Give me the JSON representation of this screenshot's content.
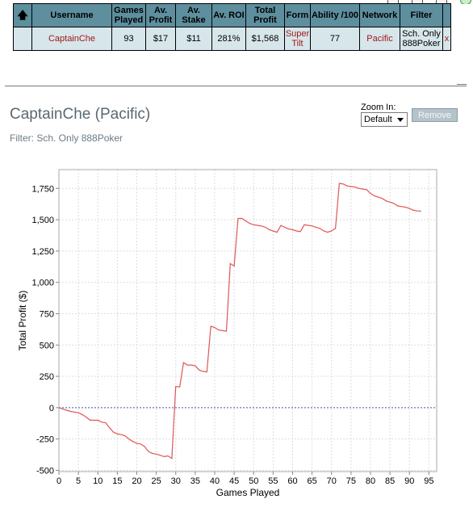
{
  "stats_table": {
    "headers": [
      "",
      "Username",
      "Games Played",
      "Av. Profit",
      "Av. Stake",
      "Av. ROI",
      "Total Profit",
      "Form",
      "Ability /100",
      "Network",
      "Filter",
      ""
    ],
    "row": {
      "username": "CaptainChe",
      "games_played": "93",
      "av_profit": "$17",
      "av_stake": "$11",
      "av_roi": "281%",
      "total_profit": "$1,568",
      "form": "Super Tilt",
      "ability": "77",
      "network": "Pacific",
      "filter": "Sch. Only 888Poker",
      "remove_x": "x"
    }
  },
  "player": {
    "title": "CaptainChe (Pacific)",
    "filter": "Filter: Sch. Only 888Poker"
  },
  "zoom": {
    "label": "Zoom In:",
    "selected": "Default"
  },
  "remove_button": "Remove",
  "colors": {
    "header_bg": "#5d8f9e",
    "row_bg": "#d7e6ea",
    "link": "#a01818",
    "line": "#e05555",
    "zero_line": "#4a5aa8"
  },
  "chart_data": {
    "type": "line",
    "xlabel": "Games Played",
    "ylabel": "Total Profit ($)",
    "xlim": [
      0,
      97
    ],
    "ylim": [
      -510,
      1900
    ],
    "x_ticks": [
      0,
      5,
      10,
      15,
      20,
      25,
      30,
      35,
      40,
      45,
      50,
      55,
      60,
      65,
      70,
      75,
      80,
      85,
      90,
      95
    ],
    "y_ticks": [
      -500,
      -250,
      0,
      250,
      500,
      750,
      1000,
      1250,
      1500,
      1750
    ],
    "y_tick_labels": [
      "-500",
      "-250",
      "0",
      "250",
      "500",
      "750",
      "1,000",
      "1,250",
      "1,500",
      "1,750"
    ],
    "grid": true,
    "reference_line": 0,
    "series": [
      {
        "x": [
          0,
          1,
          2,
          3,
          4,
          5,
          6,
          7,
          8,
          9,
          10,
          11,
          12,
          13,
          14,
          15,
          16,
          17,
          18,
          19,
          20,
          21,
          22,
          23,
          24,
          25,
          26,
          27,
          28,
          29,
          30,
          31,
          32,
          33,
          34,
          35,
          36,
          37,
          38,
          39,
          40,
          41,
          42,
          43,
          44,
          45,
          46,
          47,
          48,
          49,
          50,
          51,
          52,
          53,
          54,
          55,
          56,
          57,
          58,
          59,
          60,
          61,
          62,
          63,
          64,
          65,
          66,
          67,
          68,
          69,
          70,
          71,
          72,
          73,
          74,
          75,
          76,
          77,
          78,
          79,
          80,
          81,
          82,
          83,
          84,
          85,
          86,
          87,
          88,
          89,
          90,
          91,
          92,
          93
        ],
        "values": [
          0,
          -10,
          -20,
          -30,
          -35,
          -40,
          -55,
          -75,
          -100,
          -100,
          -100,
          -115,
          -120,
          -160,
          -195,
          -210,
          -215,
          -225,
          -250,
          -270,
          -285,
          -290,
          -310,
          -350,
          -365,
          -370,
          -380,
          -390,
          -385,
          -405,
          170,
          165,
          360,
          340,
          340,
          335,
          300,
          290,
          285,
          650,
          640,
          620,
          615,
          610,
          1150,
          1130,
          1510,
          1510,
          1490,
          1470,
          1460,
          1455,
          1450,
          1440,
          1420,
          1410,
          1400,
          1455,
          1440,
          1425,
          1420,
          1410,
          1405,
          1460,
          1455,
          1450,
          1440,
          1430,
          1410,
          1400,
          1410,
          1430,
          1790,
          1785,
          1770,
          1765,
          1760,
          1750,
          1745,
          1740,
          1710,
          1690,
          1680,
          1670,
          1650,
          1640,
          1630,
          1610,
          1605,
          1600,
          1590,
          1575,
          1570,
          1568
        ]
      }
    ]
  }
}
